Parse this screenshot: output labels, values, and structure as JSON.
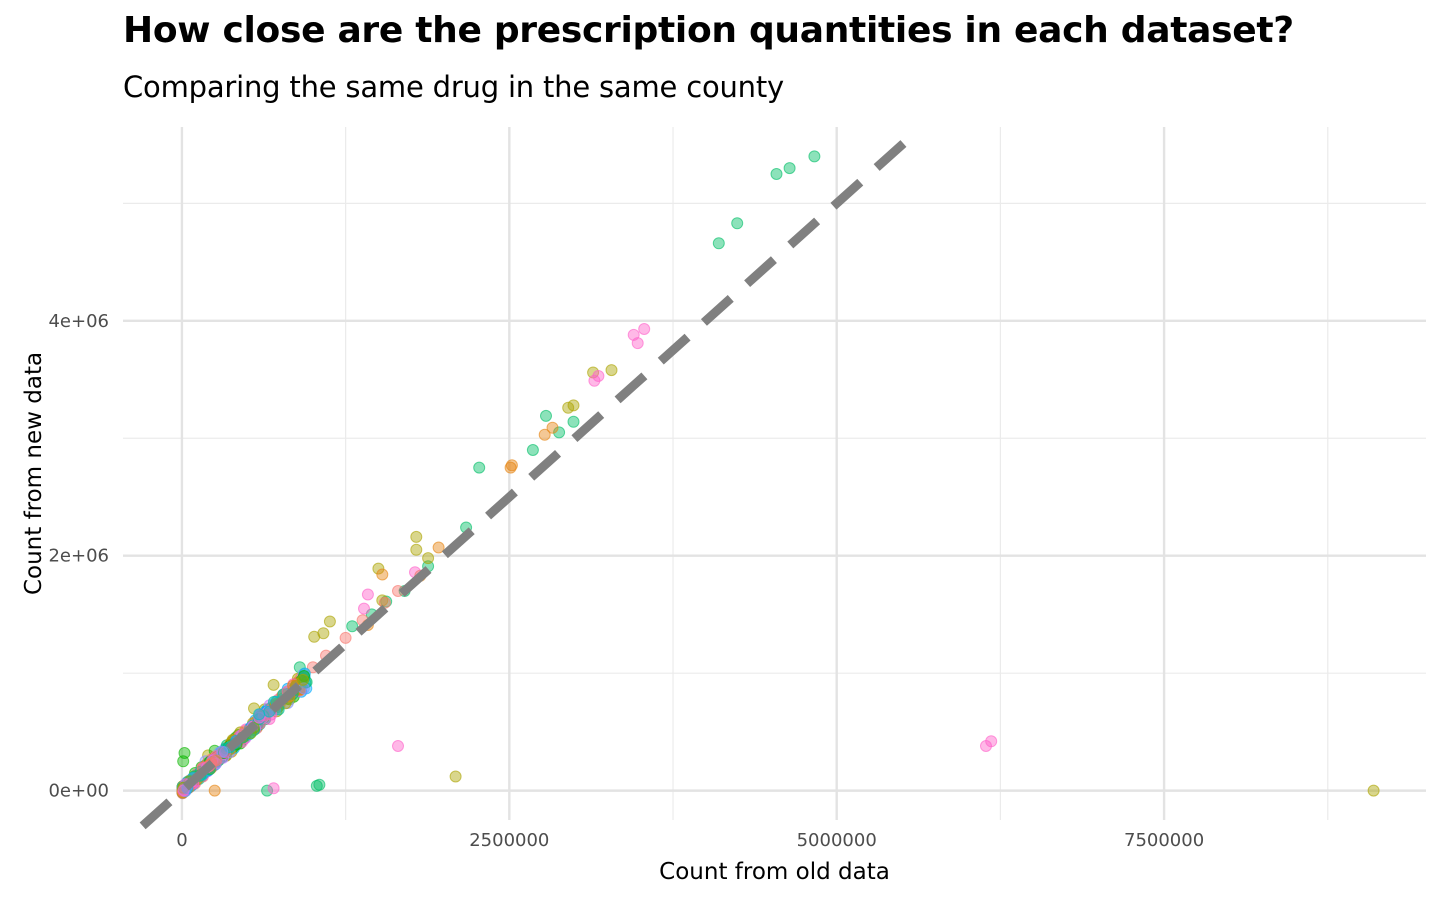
{
  "chart_data": {
    "type": "scatter",
    "title": "How close are the prescription quantities in each dataset?",
    "subtitle": "Comparing the same drug in the same county",
    "xlabel": "Count from old data",
    "ylabel": "Count from new data",
    "xlim": [
      -450000,
      9500000
    ],
    "ylim": [
      -250000,
      5650000
    ],
    "x_ticks": [
      0,
      2500000,
      5000000,
      7500000
    ],
    "x_tick_labels": [
      "0",
      "2500000",
      "5000000",
      "7500000"
    ],
    "y_ticks": [
      0,
      2000000,
      4000000
    ],
    "y_tick_labels": [
      "0e+00",
      "2e+06",
      "4e+06"
    ],
    "grid": true,
    "legend": "none",
    "reference_line": {
      "type": "identity",
      "style": "dashed",
      "color": "#808080",
      "x_range": [
        -300000,
        5600000
      ]
    },
    "point_colors": [
      "#F8766D",
      "#E68613",
      "#CD9600",
      "#ABA300",
      "#7CAE00",
      "#0CB702",
      "#00BE67",
      "#00C19A",
      "#00BFC4",
      "#00B8E7",
      "#00A9FF",
      "#8494FF",
      "#C77CFF",
      "#ED68ED",
      "#FF61C9",
      "#FF6A98"
    ],
    "series": [
      {
        "color": "#00BE67",
        "points": [
          [
            4830000,
            5400000
          ],
          [
            4640000,
            5300000
          ],
          [
            4540000,
            5250000
          ],
          [
            4240000,
            4830000
          ],
          [
            4100000,
            4660000
          ],
          [
            2990000,
            3140000
          ],
          [
            2780000,
            3190000
          ],
          [
            2880000,
            3050000
          ],
          [
            2270000,
            2750000
          ],
          [
            2170000,
            2240000
          ],
          [
            2680000,
            2900000
          ],
          [
            1880000,
            1910000
          ],
          [
            1560000,
            1610000
          ],
          [
            1450000,
            1500000
          ],
          [
            1300000,
            1400000
          ],
          [
            1700000,
            1700000
          ],
          [
            900000,
            1050000
          ],
          [
            600000,
            650000
          ],
          [
            130000,
            150000
          ],
          [
            650000,
            0
          ],
          [
            1050000,
            50000
          ],
          [
            1030000,
            40000
          ]
        ]
      },
      {
        "color": "#ABA300",
        "points": [
          [
            3280000,
            3580000
          ],
          [
            3140000,
            3560000
          ],
          [
            2990000,
            3280000
          ],
          [
            2950000,
            3260000
          ],
          [
            1790000,
            2160000
          ],
          [
            1790000,
            2050000
          ],
          [
            1880000,
            1980000
          ],
          [
            1500000,
            1890000
          ],
          [
            1130000,
            1440000
          ],
          [
            1080000,
            1340000
          ],
          [
            1010000,
            1310000
          ],
          [
            1530000,
            1620000
          ],
          [
            2090000,
            120000
          ],
          [
            9100000,
            0
          ],
          [
            700000,
            900000
          ],
          [
            550000,
            700000
          ],
          [
            200000,
            300000
          ]
        ]
      },
      {
        "color": "#E68613",
        "points": [
          [
            2520000,
            2770000
          ],
          [
            2510000,
            2750000
          ],
          [
            2830000,
            3090000
          ],
          [
            2770000,
            3030000
          ],
          [
            1530000,
            1840000
          ],
          [
            1960000,
            2070000
          ],
          [
            1820000,
            1830000
          ],
          [
            1420000,
            1410000
          ],
          [
            250000,
            0
          ]
        ]
      },
      {
        "color": "#FF61C9",
        "points": [
          [
            3530000,
            3930000
          ],
          [
            3450000,
            3880000
          ],
          [
            3480000,
            3810000
          ],
          [
            3180000,
            3530000
          ],
          [
            3150000,
            3490000
          ],
          [
            1420000,
            1670000
          ],
          [
            1390000,
            1550000
          ],
          [
            1780000,
            1860000
          ],
          [
            6180000,
            420000
          ],
          [
            6140000,
            380000
          ],
          [
            1650000,
            380000
          ],
          [
            700000,
            20000
          ]
        ]
      },
      {
        "color": "#0CB702",
        "points": [
          [
            20000,
            320000
          ],
          [
            10000,
            250000
          ],
          [
            150000,
            200000
          ],
          [
            100000,
            150000
          ],
          [
            250000,
            340000
          ]
        ]
      },
      {
        "color": "#00A9FF",
        "points": [
          [
            950000,
            870000
          ],
          [
            830000,
            820000
          ],
          [
            560000,
            600000
          ],
          [
            440000,
            440000
          ],
          [
            300000,
            330000
          ],
          [
            200000,
            180000
          ]
        ]
      },
      {
        "color": "#8494FF",
        "points": [
          [
            220000,
            240000
          ],
          [
            180000,
            250000
          ],
          [
            330000,
            360000
          ],
          [
            430000,
            470000
          ],
          [
            600000,
            650000
          ],
          [
            260000,
            230000
          ]
        ]
      },
      {
        "color": "#F8766D",
        "points": [
          [
            50000,
            40000
          ],
          [
            80000,
            70000
          ],
          [
            120000,
            110000
          ],
          [
            170000,
            160000
          ],
          [
            240000,
            240000
          ],
          [
            310000,
            320000
          ],
          [
            380000,
            390000
          ],
          [
            470000,
            480000
          ],
          [
            560000,
            580000
          ],
          [
            650000,
            680000
          ],
          [
            760000,
            800000
          ],
          [
            880000,
            920000
          ],
          [
            1000000,
            1050000
          ],
          [
            1100000,
            1150000
          ],
          [
            1250000,
            1300000
          ],
          [
            1380000,
            1450000
          ],
          [
            1550000,
            1600000
          ],
          [
            1650000,
            1700000
          ],
          [
            30000,
            20000
          ],
          [
            100000,
            60000
          ],
          [
            160000,
            120000
          ],
          [
            210000,
            180000
          ],
          [
            290000,
            270000
          ]
        ]
      }
    ]
  }
}
